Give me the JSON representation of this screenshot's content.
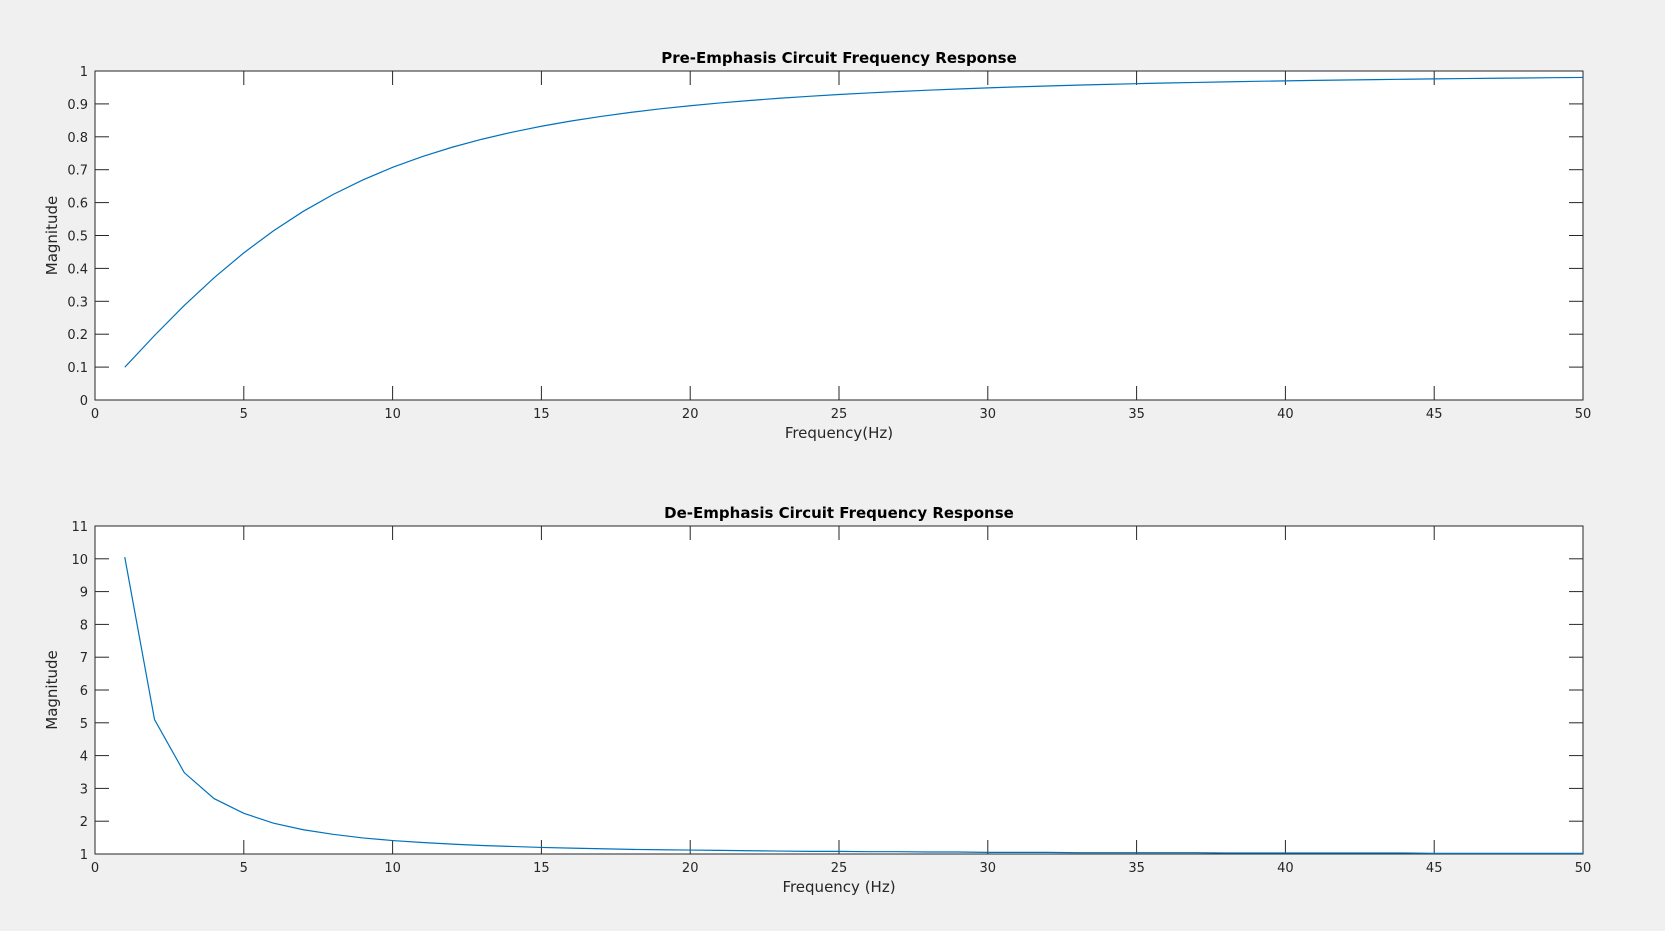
{
  "colors": {
    "figure_bg": "#f0f0f0",
    "axes_bg": "#ffffff",
    "axis": "#262626",
    "line": "#0072bd"
  },
  "chart_data": [
    {
      "type": "line",
      "title": "Pre-Emphasis Circuit Frequency Response",
      "xlabel": "Frequency(Hz)",
      "ylabel": "Magnitude",
      "xlim": [
        0,
        50
      ],
      "ylim": [
        0,
        1
      ],
      "xticks": [
        0,
        5,
        10,
        15,
        20,
        25,
        30,
        35,
        40,
        45,
        50
      ],
      "yticks": [
        0,
        0.1,
        0.2,
        0.3,
        0.4,
        0.5,
        0.6,
        0.7,
        0.8,
        0.9,
        1
      ],
      "grid": false,
      "series": [
        {
          "x": [
            1,
            2,
            3,
            4,
            5,
            6,
            7,
            8,
            9,
            10,
            11,
            12,
            13,
            14,
            15,
            16,
            17,
            18,
            19,
            20,
            21,
            22,
            23,
            24,
            25,
            26,
            27,
            28,
            29,
            30,
            31,
            32,
            33,
            34,
            35,
            36,
            37,
            38,
            39,
            40,
            41,
            42,
            43,
            44,
            45,
            46,
            47,
            48,
            49,
            50
          ],
          "values": [
            0.0995,
            0.1961,
            0.2873,
            0.3714,
            0.4472,
            0.5145,
            0.5735,
            0.6247,
            0.669,
            0.7071,
            0.7399,
            0.7682,
            0.7926,
            0.8137,
            0.8321,
            0.848,
            0.8619,
            0.8742,
            0.885,
            0.8944,
            0.9029,
            0.9104,
            0.9171,
            0.9231,
            0.9285,
            0.9333,
            0.9377,
            0.9417,
            0.9453,
            0.9487,
            0.9517,
            0.9545,
            0.9571,
            0.9594,
            0.9615,
            0.9635,
            0.9653,
            0.967,
            0.9686,
            0.9701,
            0.9714,
            0.9727,
            0.9739,
            0.975,
            0.9761,
            0.977,
            0.978,
            0.9788,
            0.9796,
            0.9804
          ]
        }
      ]
    },
    {
      "type": "line",
      "title": "De-Emphasis Circuit Frequency Response",
      "xlabel": "Frequency (Hz)",
      "ylabel": "Magnitude",
      "xlim": [
        0,
        50
      ],
      "ylim": [
        1,
        11
      ],
      "xticks": [
        0,
        5,
        10,
        15,
        20,
        25,
        30,
        35,
        40,
        45,
        50
      ],
      "yticks": [
        1,
        2,
        3,
        4,
        5,
        6,
        7,
        8,
        9,
        10,
        11
      ],
      "grid": false,
      "series": [
        {
          "x": [
            1,
            2,
            3,
            4,
            5,
            6,
            7,
            8,
            9,
            10,
            11,
            12,
            13,
            14,
            15,
            16,
            17,
            18,
            19,
            20,
            21,
            22,
            23,
            24,
            25,
            26,
            27,
            28,
            29,
            30,
            31,
            32,
            33,
            34,
            35,
            36,
            37,
            38,
            39,
            40,
            41,
            42,
            43,
            44,
            45,
            46,
            47,
            48,
            49,
            50
          ],
          "values": [
            10.05,
            5.1,
            3.48,
            2.69,
            2.24,
            1.94,
            1.74,
            1.6,
            1.49,
            1.41,
            1.35,
            1.3,
            1.26,
            1.23,
            1.2,
            1.18,
            1.16,
            1.14,
            1.13,
            1.12,
            1.11,
            1.1,
            1.09,
            1.08,
            1.08,
            1.07,
            1.07,
            1.06,
            1.06,
            1.05,
            1.05,
            1.05,
            1.04,
            1.04,
            1.04,
            1.04,
            1.04,
            1.03,
            1.03,
            1.03,
            1.03,
            1.03,
            1.03,
            1.03,
            1.02,
            1.02,
            1.02,
            1.02,
            1.02,
            1.02
          ]
        }
      ]
    }
  ]
}
